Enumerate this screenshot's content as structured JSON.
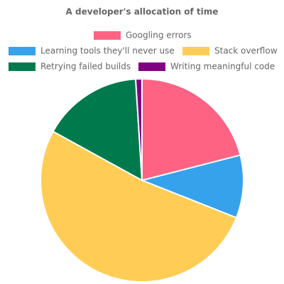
{
  "chart_data": {
    "type": "pie",
    "title": "A developer's allocation of time",
    "categories": [
      "Googling errors",
      "Learning tools they'll never use",
      "Stack overflow",
      "Retrying failed builds",
      "Writing meaningful code"
    ],
    "values": [
      21,
      10,
      52,
      16,
      1
    ],
    "colors": [
      "#ff6384",
      "#36a2eb",
      "#ffcd56",
      "#007a4d",
      "#800080"
    ],
    "legend": "top"
  }
}
